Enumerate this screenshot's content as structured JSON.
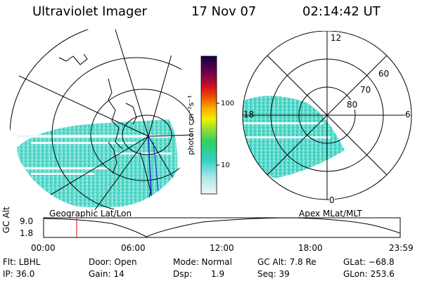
{
  "header": {
    "title": "Ultraviolet Imager",
    "date": "17 Nov 07",
    "time": "02:14:42 UT"
  },
  "geo_map": {
    "label": "Geographic Lat/Lon"
  },
  "colorbar": {
    "unit_label": "photon cm⁻²s⁻¹",
    "ticks": [
      "100",
      "10"
    ],
    "scale": "log"
  },
  "polar_plot": {
    "label": "Apex MLat/MLT",
    "mlt_labels": [
      "12",
      "18",
      "6",
      "0"
    ],
    "lat_labels": [
      "60",
      "70",
      "80"
    ]
  },
  "timeline": {
    "ylabel": "GC Alt",
    "yticks": [
      "9.0",
      "1.8"
    ],
    "xticks": [
      "00:00",
      "06:00",
      "12:00",
      "18:00",
      "23:59"
    ],
    "marker_time": "02:14:42"
  },
  "info": {
    "flt": "Flt: LBHL",
    "ip": "IP: 36.0",
    "door": "Door: Open",
    "gain": "Gain: 14",
    "mode": "Mode: Normal",
    "dsp_label": "Dsp:",
    "dsp_value": "1.9",
    "gcalt": "GC Alt: 7.8 Re",
    "seq": "Seq: 39",
    "glat": "GLat: −68.8",
    "glon": "GLon: 253.6"
  },
  "colors": {
    "aurora": "#40d0c0",
    "orbit_marker": "#e00000",
    "meridian": "#1020c0"
  }
}
